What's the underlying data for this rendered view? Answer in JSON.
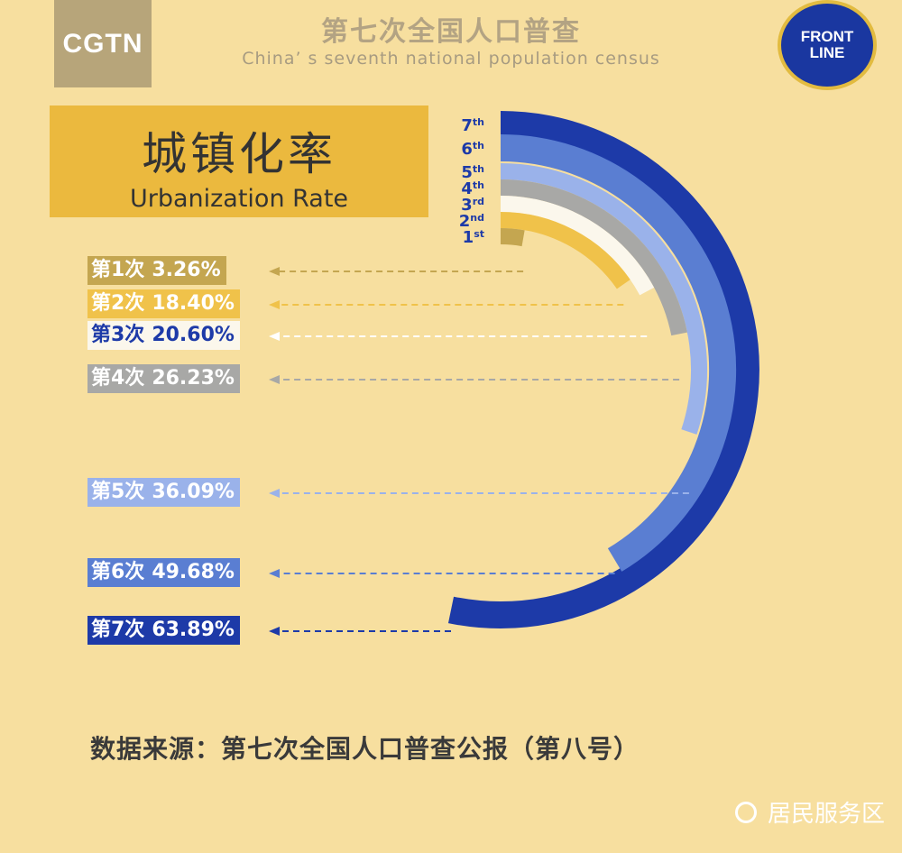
{
  "header": {
    "title": "第七次全国人口普查",
    "subtitle": "China’ s seventh national population census",
    "logo_left": "CGTN",
    "logo_right_line1": "FRONT",
    "logo_right_line2": "LINE"
  },
  "title_box": {
    "title_zh": "城镇化率",
    "title_en": "Urbanization Rate"
  },
  "chart_data": {
    "type": "radial-bar",
    "title": "城镇化率",
    "subtitle": "Urbanization Rate",
    "categories": [
      "第1次",
      "第2次",
      "第3次",
      "第4次",
      "第5次",
      "第6次",
      "第7次"
    ],
    "ring_labels": [
      "1",
      "2",
      "3",
      "4",
      "5",
      "6",
      "7"
    ],
    "ring_label_suffixes": [
      "st",
      "nd",
      "rd",
      "th",
      "th",
      "th",
      "th"
    ],
    "values": [
      3.26,
      18.4,
      20.6,
      26.23,
      36.09,
      49.68,
      63.89
    ],
    "value_labels": [
      "3.26%",
      "18.40%",
      "20.60%",
      "26.23%",
      "36.09%",
      "49.68%",
      "63.89%"
    ],
    "unit": "%",
    "colors": [
      "#c4a650",
      "#f0c24a",
      "#fbf7ec",
      "#a8a8a6",
      "#9ab2ea",
      "#5a7ed2",
      "#1d3aa8"
    ],
    "label_text_colors": [
      "#ffffff",
      "#ffffff",
      "#1d3aa8",
      "#ffffff",
      "#ffffff",
      "#ffffff",
      "#ffffff"
    ]
  },
  "footer": {
    "source": "数据来源：第七次全国人口普查公报（第八号）"
  },
  "watermark": {
    "text": "居民服务区"
  }
}
